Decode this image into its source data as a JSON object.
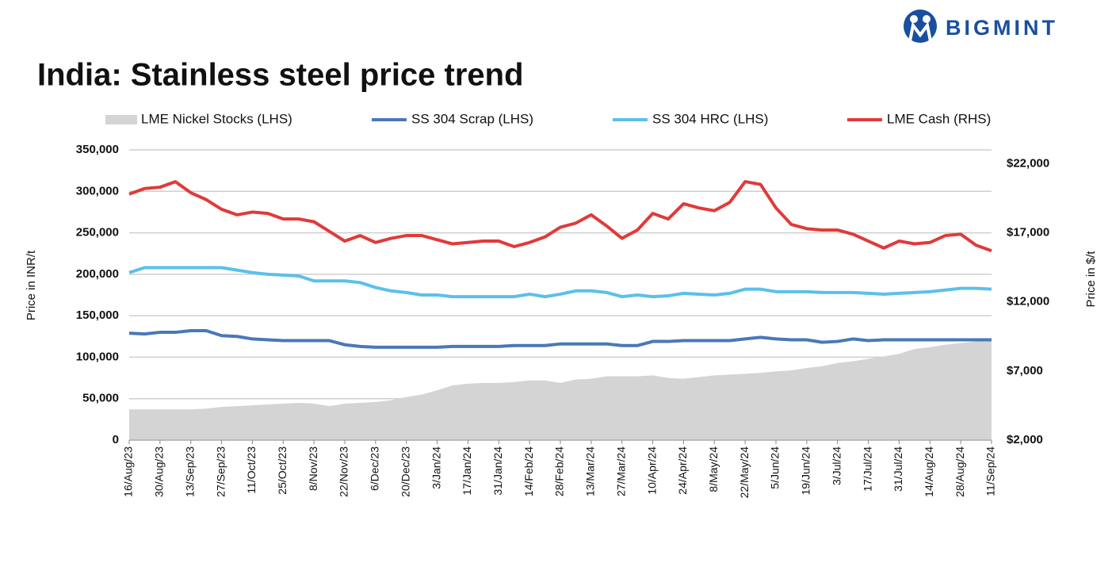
{
  "brand": "BIGMINT",
  "chart_data": {
    "type": "line",
    "title": "India: Stainless steel price trend",
    "y_label": "Price in INR/t",
    "y2_label": "Price in $/t",
    "categories": [
      "16/Aug/23",
      null,
      "30/Aug/23",
      null,
      "13/Sep/23",
      null,
      "27/Sep/23",
      null,
      "11/Oct/23",
      null,
      "25/Oct/23",
      null,
      "8/Nov/23",
      null,
      "22/Nov/23",
      null,
      "6/Dec/23",
      null,
      "20/Dec/23",
      null,
      "3/Jan/24",
      null,
      "17/Jan/24",
      null,
      "31/Jan/24",
      null,
      "14/Feb/24",
      null,
      "28/Feb/24",
      null,
      "13/Mar/24",
      null,
      "27/Mar/24",
      null,
      "10/Apr/24",
      null,
      "24/Apr/24",
      null,
      "8/May/24",
      null,
      "22/May/24",
      null,
      "5/Jun/24",
      null,
      "19/Jun/24",
      null,
      "3/Jul/24",
      null,
      "17/Jul/24",
      null,
      "31/Jul/24",
      null,
      "14/Aug/24",
      null,
      "28/Aug/24",
      null,
      "11/Sep/24"
    ],
    "ylim": [
      0,
      350000
    ],
    "yticks": [
      0,
      {
        "value": 50000,
        "label": "50,000"
      },
      {
        "value": 100000,
        "label": "100,000"
      },
      {
        "value": 150000,
        "label": "150,000"
      },
      {
        "value": 200000,
        "label": "200,000"
      },
      {
        "value": 250000,
        "label": "250,000"
      },
      {
        "value": 300000,
        "label": "300,000"
      },
      {
        "value": 350000,
        "label": "350,000"
      }
    ],
    "y2lim": [
      2000,
      23000
    ],
    "y2ticks": [
      {
        "value": 2000,
        "label": "$2,000"
      },
      {
        "value": 7000,
        "label": "$7,000"
      },
      {
        "value": 12000,
        "label": "$12,000"
      },
      {
        "value": 17000,
        "label": "$17,000"
      },
      {
        "value": 22000,
        "label": "$22,000"
      }
    ],
    "grid": true,
    "series": [
      {
        "name": "LME Nickel Stocks (LHS)",
        "kind": "area",
        "color": "#d4d4d4",
        "values": [
          37000,
          37000,
          37000,
          37000,
          37000,
          38000,
          40000,
          41000,
          42000,
          43000,
          44000,
          45000,
          44000,
          41000,
          44000,
          45000,
          46000,
          48000,
          52000,
          55000,
          60000,
          66000,
          68000,
          69000,
          69000,
          70000,
          72000,
          72000,
          69000,
          73000,
          74000,
          77000,
          77000,
          77000,
          78000,
          75000,
          74000,
          76000,
          78000,
          79000,
          80000,
          81000,
          83000,
          84000,
          87000,
          89000,
          93000,
          95000,
          98000,
          101000,
          104000,
          110000,
          112000,
          115000,
          117000,
          119000,
          122000
        ]
      },
      {
        "name": "SS 304 Scrap (LHS)",
        "kind": "line",
        "color": "#4a78b8",
        "values": [
          129000,
          128000,
          130000,
          130000,
          132000,
          132000,
          126000,
          125000,
          122000,
          121000,
          120000,
          120000,
          120000,
          120000,
          115000,
          113000,
          112000,
          112000,
          112000,
          112000,
          112000,
          113000,
          113000,
          113000,
          113000,
          114000,
          114000,
          114000,
          116000,
          116000,
          116000,
          116000,
          114000,
          114000,
          119000,
          119000,
          120000,
          120000,
          120000,
          120000,
          122000,
          124000,
          122000,
          121000,
          121000,
          118000,
          119000,
          122000,
          120000,
          121000,
          121000,
          121000,
          121000,
          121000,
          121000,
          121000,
          121000
        ]
      },
      {
        "name": "SS 304 HRC (LHS)",
        "kind": "line",
        "color": "#5bc0eb",
        "values": [
          202000,
          208000,
          208000,
          208000,
          208000,
          208000,
          208000,
          205000,
          202000,
          200000,
          199000,
          198000,
          192000,
          192000,
          192000,
          190000,
          184000,
          180000,
          178000,
          175000,
          175000,
          173000,
          173000,
          173000,
          173000,
          173000,
          176000,
          173000,
          176000,
          180000,
          180000,
          178000,
          173000,
          175000,
          173000,
          174000,
          177000,
          176000,
          175000,
          177000,
          182000,
          182000,
          179000,
          179000,
          179000,
          178000,
          178000,
          178000,
          177000,
          176000,
          177000,
          178000,
          179000,
          181000,
          183000,
          183000,
          182000
        ]
      },
      {
        "name": "LME Cash (RHS)",
        "kind": "line",
        "axis": "y2",
        "color": "#e03a3a",
        "values": [
          19800,
          20200,
          20300,
          20700,
          19900,
          19400,
          18700,
          18300,
          18500,
          18400,
          18000,
          18000,
          17800,
          17100,
          16400,
          16800,
          16300,
          16600,
          16800,
          16800,
          16500,
          16200,
          16300,
          16400,
          16400,
          16000,
          16300,
          16700,
          17400,
          17700,
          18300,
          17500,
          16600,
          17200,
          18400,
          18000,
          19100,
          18800,
          18600,
          19200,
          20700,
          20500,
          18800,
          17600,
          17300,
          17200,
          17200,
          16900,
          16400,
          15900,
          16400,
          16200,
          16300,
          16800,
          16900,
          16100,
          15700
        ]
      }
    ]
  }
}
